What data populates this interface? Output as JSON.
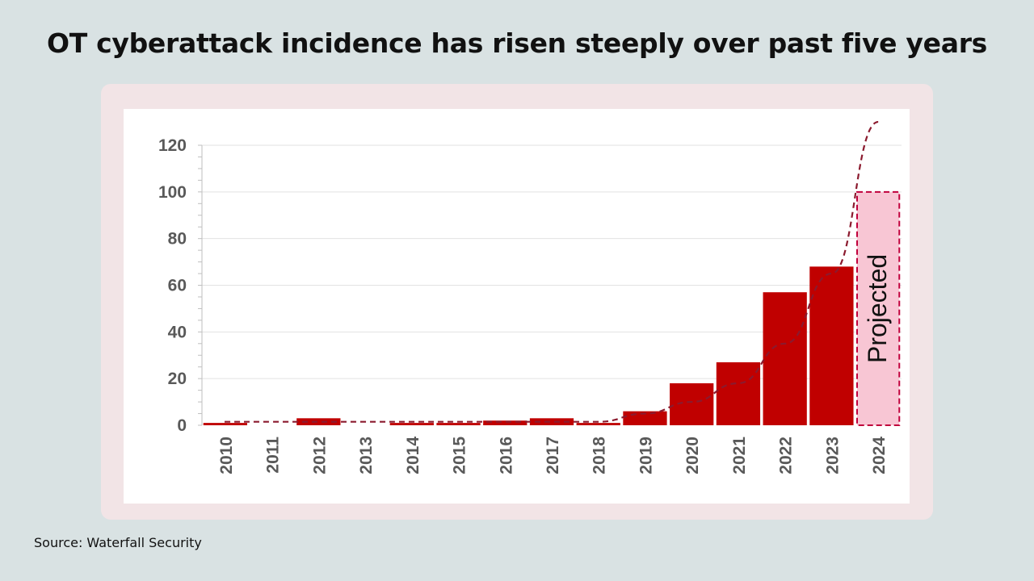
{
  "title": "OT cyberattack incidence has risen steeply over past five years",
  "source": "Source: Waterfall Security",
  "colors": {
    "bar": "#c00000",
    "projected_fill": "#f8c6d4",
    "projected_border": "#c0003c",
    "trend": "#8b1a2e",
    "axis_text": "#595959"
  },
  "chart_data": {
    "type": "bar",
    "title": "",
    "xlabel": "",
    "ylabel": "",
    "ylim": [
      0,
      120
    ],
    "yticks": [
      0,
      20,
      40,
      60,
      80,
      100,
      120
    ],
    "grid": true,
    "categories": [
      "2010",
      "2011",
      "2012",
      "2013",
      "2014",
      "2015",
      "2016",
      "2017",
      "2018",
      "2019",
      "2020",
      "2021",
      "2022",
      "2023",
      "2024"
    ],
    "values": [
      1,
      0,
      3,
      0,
      1,
      1,
      2,
      3,
      1,
      6,
      18,
      27,
      57,
      68,
      100
    ],
    "projected": [
      false,
      false,
      false,
      false,
      false,
      false,
      false,
      false,
      false,
      false,
      false,
      false,
      false,
      false,
      true
    ],
    "annotation": "Projected",
    "trendline": {
      "style": "dashed",
      "x": [
        "2010",
        "2011",
        "2012",
        "2013",
        "2014",
        "2015",
        "2016",
        "2017",
        "2018",
        "2019",
        "2020",
        "2021",
        "2022",
        "2023",
        "2024"
      ],
      "values": [
        1.5,
        1.5,
        1.5,
        1.5,
        1.5,
        1.5,
        1.5,
        1.5,
        1.5,
        5,
        10,
        18,
        35,
        65,
        130
      ]
    }
  }
}
